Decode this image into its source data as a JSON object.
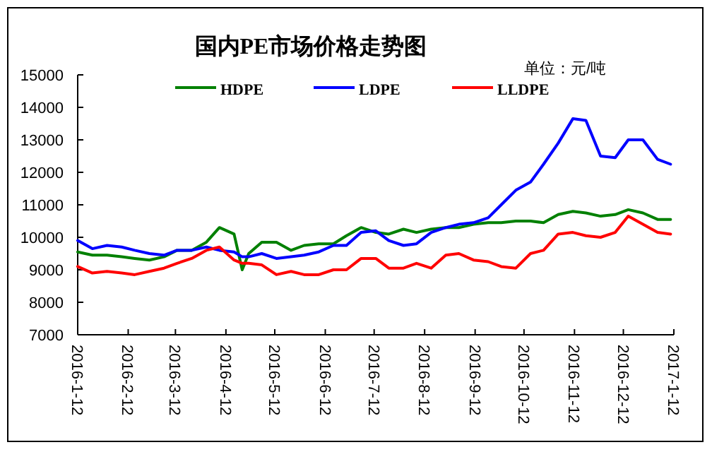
{
  "chart_data": {
    "type": "line",
    "title": "国内PE市场价格走势图",
    "annotations": [
      "单位：元/吨"
    ],
    "x": [
      "2016-01-12",
      "2016-01-21",
      "2016-01-30",
      "2016-02-08",
      "2016-02-16",
      "2016-02-25",
      "2016-03-05",
      "2016-03-13",
      "2016-03-22",
      "2016-03-31",
      "2016-04-08",
      "2016-04-17",
      "2016-04-22",
      "2016-04-26",
      "2016-05-04",
      "2016-05-13",
      "2016-05-22",
      "2016-05-30",
      "2016-06-08",
      "2016-06-17",
      "2016-06-25",
      "2016-07-04",
      "2016-07-13",
      "2016-07-21",
      "2016-07-30",
      "2016-08-07",
      "2016-08-16",
      "2016-08-25",
      "2016-09-02",
      "2016-09-11",
      "2016-09-20",
      "2016-09-28",
      "2016-10-07",
      "2016-10-16",
      "2016-10-24",
      "2016-11-02",
      "2016-11-11",
      "2016-11-19",
      "2016-11-28",
      "2016-12-07",
      "2016-12-15",
      "2016-12-24",
      "2017-01-02",
      "2017-01-10"
    ],
    "series": [
      {
        "name": "HDPE",
        "color": "#008000",
        "values": [
          9550,
          9450,
          9450,
          9400,
          9350,
          9300,
          9400,
          9600,
          9600,
          9850,
          10300,
          10100,
          9000,
          9500,
          9850,
          9850,
          9600,
          9750,
          9800,
          9800,
          10050,
          10300,
          10150,
          10100,
          10250,
          10150,
          10250,
          10300,
          10300,
          10400,
          10450,
          10450,
          10500,
          10500,
          10450,
          10700,
          10800,
          10750,
          10650,
          10700,
          10850,
          10750,
          10550,
          10550
        ]
      },
      {
        "name": "LDPE",
        "color": "#0000ff",
        "values": [
          9900,
          9650,
          9750,
          9700,
          9600,
          9500,
          9450,
          9600,
          9600,
          9700,
          9600,
          9550,
          9400,
          9400,
          9500,
          9350,
          9400,
          9450,
          9550,
          9750,
          9750,
          10150,
          10200,
          9900,
          9750,
          9800,
          10150,
          10300,
          10400,
          10450,
          10600,
          11000,
          11450,
          11700,
          12250,
          12900,
          13650,
          13600,
          12500,
          12450,
          13000,
          13000,
          12400,
          12250
        ]
      },
      {
        "name": "LLDPE",
        "color": "#ff0000",
        "values": [
          9100,
          8900,
          8950,
          8900,
          8850,
          8950,
          9050,
          9200,
          9350,
          9600,
          9700,
          9300,
          9200,
          9200,
          9150,
          8850,
          8950,
          8850,
          8850,
          9000,
          9000,
          9350,
          9350,
          9050,
          9050,
          9200,
          9050,
          9450,
          9500,
          9300,
          9250,
          9100,
          9050,
          9500,
          9600,
          10100,
          10150,
          10050,
          10000,
          10150,
          10650,
          10400,
          10150,
          10100
        ]
      }
    ],
    "xlim": [
      "2016-01-12",
      "2017-01-12"
    ],
    "xticks": [
      {
        "value": "2016-01-12",
        "label": "2016-1-12"
      },
      {
        "value": "2016-02-12",
        "label": "2016-2-12"
      },
      {
        "value": "2016-03-12",
        "label": "2016-3-12"
      },
      {
        "value": "2016-04-12",
        "label": "2016-4-12"
      },
      {
        "value": "2016-05-12",
        "label": "2016-5-12"
      },
      {
        "value": "2016-06-12",
        "label": "2016-6-12"
      },
      {
        "value": "2016-07-12",
        "label": "2016-7-12"
      },
      {
        "value": "2016-08-12",
        "label": "2016-8-12"
      },
      {
        "value": "2016-09-12",
        "label": "2016-9-12"
      },
      {
        "value": "2016-10-12",
        "label": "2016-10-12"
      },
      {
        "value": "2016-11-12",
        "label": "2016-11-12"
      },
      {
        "value": "2016-12-12",
        "label": "2016-12-12"
      },
      {
        "value": "2017-01-12",
        "label": "2017-1-12"
      }
    ],
    "ylim": [
      7000,
      15000
    ],
    "yticks": [
      7000,
      8000,
      9000,
      10000,
      11000,
      12000,
      13000,
      14000,
      15000
    ],
    "legend": "top",
    "grid": false
  }
}
